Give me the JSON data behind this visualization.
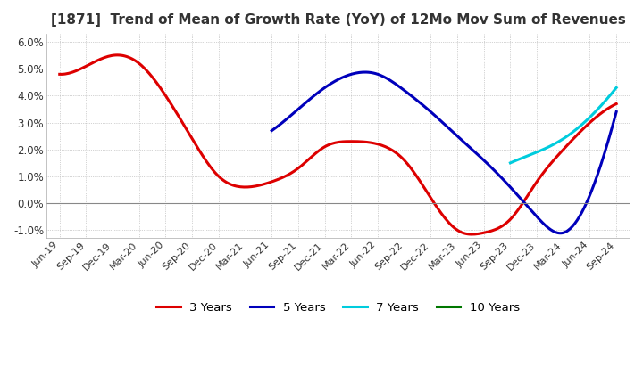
{
  "title": "[1871]  Trend of Mean of Growth Rate (YoY) of 12Mo Mov Sum of Revenues",
  "title_fontsize": 11,
  "background_color": "#ffffff",
  "grid_color": "#aaaaaa",
  "ylim": [
    -0.013,
    0.063
  ],
  "yticks": [
    -0.01,
    0.0,
    0.01,
    0.02,
    0.03,
    0.04,
    0.05,
    0.06
  ],
  "x_labels": [
    "Jun-19",
    "Sep-19",
    "Dec-19",
    "Mar-20",
    "Jun-20",
    "Sep-20",
    "Dec-20",
    "Mar-21",
    "Jun-21",
    "Sep-21",
    "Dec-21",
    "Mar-22",
    "Jun-22",
    "Sep-22",
    "Dec-22",
    "Mar-23",
    "Jun-23",
    "Sep-23",
    "Dec-23",
    "Mar-24",
    "Jun-24",
    "Sep-24"
  ],
  "line_3y": [
    0.048,
    0.051,
    0.055,
    0.052,
    0.04,
    0.024,
    0.01,
    0.006,
    0.008,
    0.013,
    0.021,
    0.023,
    0.022,
    0.016,
    0.002,
    -0.01,
    -0.011,
    -0.006,
    0.008,
    0.02,
    0.03,
    0.037
  ],
  "line_5y": [
    null,
    null,
    null,
    null,
    null,
    null,
    null,
    null,
    0.027,
    0.035,
    0.043,
    0.048,
    0.048,
    0.042,
    0.034,
    0.025,
    0.016,
    0.006,
    -0.005,
    -0.011,
    0.003,
    0.034
  ],
  "line_7y": [
    null,
    null,
    null,
    null,
    null,
    null,
    null,
    null,
    null,
    null,
    null,
    null,
    null,
    null,
    null,
    null,
    null,
    0.015,
    0.019,
    0.024,
    0.032,
    0.043
  ],
  "line_10y": [
    null,
    null,
    null,
    null,
    null,
    null,
    null,
    null,
    null,
    null,
    null,
    null,
    null,
    null,
    null,
    null,
    null,
    null,
    null,
    null,
    null,
    null
  ],
  "colors": {
    "3y": "#dd0000",
    "5y": "#0000bb",
    "7y": "#00ccdd",
    "10y": "#007700"
  },
  "legend_labels": [
    "3 Years",
    "5 Years",
    "7 Years",
    "10 Years"
  ]
}
